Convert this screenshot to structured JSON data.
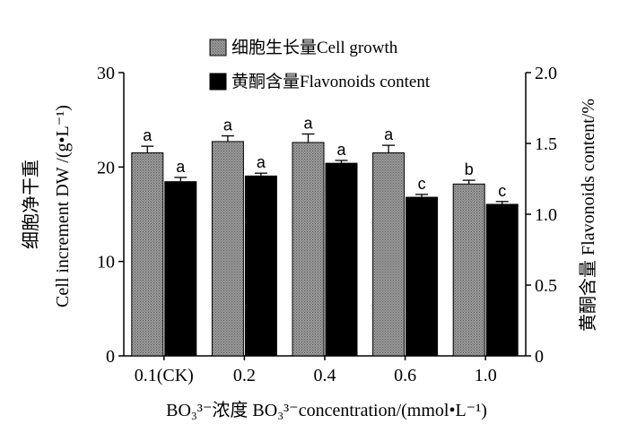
{
  "chart_data": {
    "type": "bar",
    "categories": [
      "0.1(CK)",
      "0.2",
      "0.4",
      "0.6",
      "1.0"
    ],
    "series": [
      {
        "name": "细胞生长量Cell growth",
        "axis": "left",
        "color": "#8c8c8c",
        "values": [
          21.5,
          22.7,
          22.6,
          21.5,
          18.2
        ],
        "errors": [
          0.7,
          0.6,
          0.9,
          0.8,
          0.4
        ],
        "labels": [
          "a",
          "a",
          "a",
          "a",
          "b"
        ]
      },
      {
        "name": "黄酮含量Flavonoids content",
        "axis": "right",
        "color": "#000000",
        "values": [
          1.23,
          1.27,
          1.36,
          1.12,
          1.07
        ],
        "errors": [
          0.03,
          0.02,
          0.02,
          0.02,
          0.02
        ],
        "labels": [
          "a",
          "a",
          "a",
          "c",
          "c"
        ]
      }
    ],
    "y_left": {
      "label": "Cell increment DW /(g•L⁻¹)",
      "label_cn": "细胞净干重",
      "ylim": [
        0,
        30
      ],
      "ticks": [
        0,
        10,
        20,
        30
      ]
    },
    "y_right": {
      "label": "黄酮含量 Flavonoids content/%",
      "ylim": [
        0,
        2.0
      ],
      "ticks": [
        "0",
        "0.5",
        "1.0",
        "1.5",
        "2.0"
      ]
    },
    "x_label": "BO₃³⁻浓度 BO₃³⁻concentration/(mmol•L⁻¹)",
    "legend_position": "top-center",
    "grid": false
  }
}
